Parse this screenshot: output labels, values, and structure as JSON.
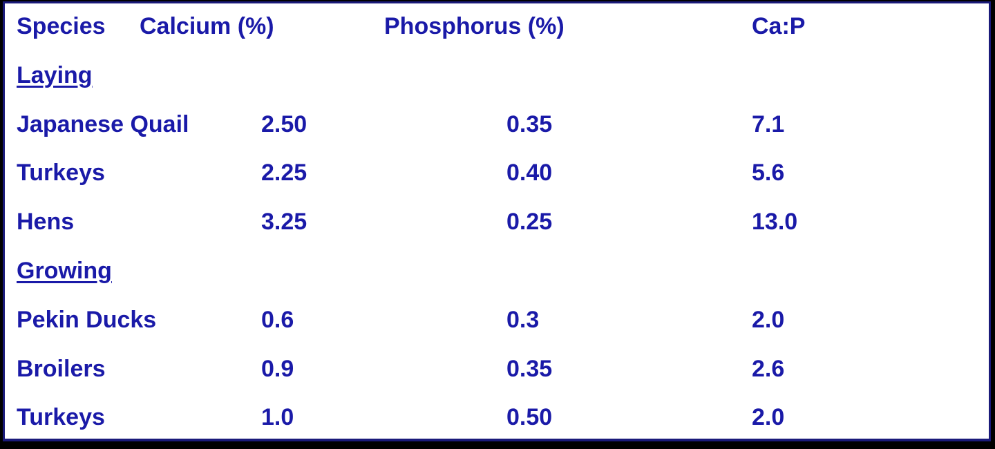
{
  "header": [
    "Species",
    "Calcium (%)",
    "Phosphorus (%)",
    "Ca:P"
  ],
  "sections": [
    {
      "title": "Laying",
      "rows": [
        [
          "Japanese Quail",
          "2.50",
          "0.35",
          "7.1"
        ],
        [
          "Turkeys",
          "2.25",
          "0.40",
          "5.6"
        ],
        [
          "Hens",
          "3.25",
          "0.25",
          "13.0"
        ]
      ]
    },
    {
      "title": "Growing",
      "rows": [
        [
          "Pekin Ducks",
          "0.6",
          "0.3",
          "2.0"
        ],
        [
          "Broilers",
          "0.9",
          "0.35",
          "2.6"
        ],
        [
          "Turkeys",
          "1.0",
          "0.50",
          "2.0"
        ]
      ]
    }
  ]
}
